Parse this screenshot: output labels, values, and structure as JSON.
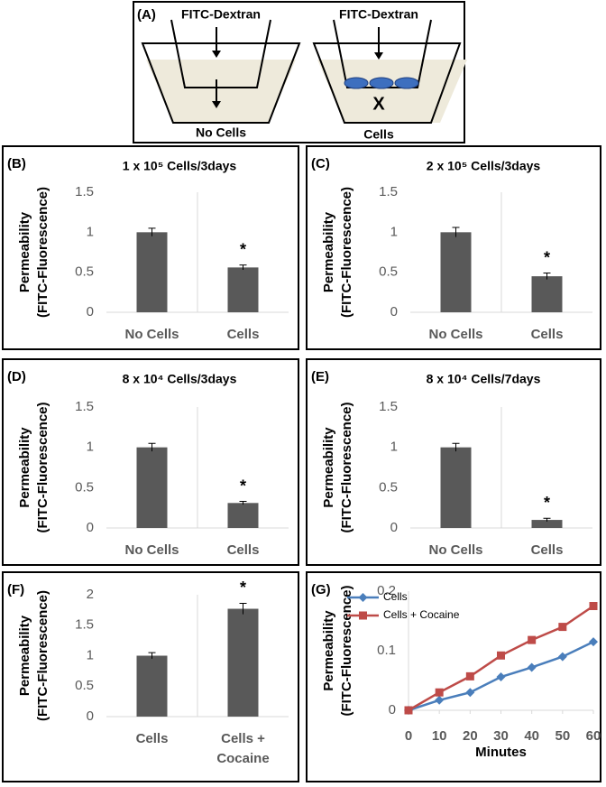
{
  "diagram": {
    "label": "(A)",
    "left_well": {
      "label": "FITC-Dextran",
      "caption": "No Cells"
    },
    "right_well": {
      "label": "FITC-Dextran",
      "caption": "Cells",
      "marker": "X"
    }
  },
  "chart_data": [
    {
      "type": "bar",
      "panel": "(B)",
      "title": "1 x 10⁵ Cells/3days",
      "ylabel": [
        "Permeability",
        "(FITC-Fluorescence)"
      ],
      "categories": [
        "No Cells",
        "Cells"
      ],
      "values": [
        1,
        0.56
      ],
      "errors": [
        0.05,
        0.03
      ],
      "significance": [
        null,
        "*"
      ],
      "color": "#595959",
      "ylim": [
        0,
        1.5
      ],
      "yticks": [
        0,
        0.5,
        1,
        1.5
      ]
    },
    {
      "type": "bar",
      "panel": "(C)",
      "title": "2 x 10⁵ Cells/3days",
      "ylabel": [
        "Permeability",
        "(FITC-Fluorescence)"
      ],
      "categories": [
        "No Cells",
        "Cells"
      ],
      "values": [
        1,
        0.45
      ],
      "errors": [
        0.06,
        0.04
      ],
      "significance": [
        null,
        "*"
      ],
      "color": "#595959",
      "ylim": [
        0,
        1.5
      ],
      "yticks": [
        0,
        0.5,
        1,
        1.5
      ]
    },
    {
      "type": "bar",
      "panel": "(D)",
      "title": "8 x 10⁴ Cells/3days",
      "ylabel": [
        "Permeability",
        "(FITC-Fluorescence)"
      ],
      "categories": [
        "No Cells",
        "Cells"
      ],
      "values": [
        1,
        0.31
      ],
      "errors": [
        0.05,
        0.02
      ],
      "significance": [
        null,
        "*"
      ],
      "color": "#595959",
      "ylim": [
        0,
        1.5
      ],
      "yticks": [
        0,
        0.5,
        1,
        1.5
      ]
    },
    {
      "type": "bar",
      "panel": "(E)",
      "title": "8 x 10⁴ Cells/7days",
      "ylabel": [
        "Permeability",
        "(FITC-Fluorescence)"
      ],
      "categories": [
        "No Cells",
        "Cells"
      ],
      "values": [
        1,
        0.1
      ],
      "errors": [
        0.05,
        0.02
      ],
      "significance": [
        null,
        "*"
      ],
      "color": "#595959",
      "ylim": [
        0,
        1.5
      ],
      "yticks": [
        0,
        0.5,
        1,
        1.5
      ]
    },
    {
      "type": "bar",
      "panel": "(F)",
      "ylabel": [
        "Permeability",
        "(FITC-Fluorescence)"
      ],
      "categories": [
        "Cells",
        "Cells + Cocaine"
      ],
      "values": [
        1,
        1.77
      ],
      "errors": [
        0.05,
        0.09
      ],
      "significance": [
        null,
        "*"
      ],
      "color": "#595959",
      "ylim": [
        0,
        2
      ],
      "yticks": [
        0,
        0.5,
        1,
        1.5,
        2
      ]
    },
    {
      "type": "line",
      "panel": "(G)",
      "ylabel": [
        "Permeability",
        "(FITC-Fluorescence)"
      ],
      "xlabel": "Minutes",
      "x": [
        0,
        10,
        20,
        30,
        40,
        50,
        60
      ],
      "xlim": [
        0,
        60
      ],
      "xticks": [
        0,
        10,
        20,
        30,
        40,
        50,
        60
      ],
      "ylim": [
        0,
        0.2
      ],
      "yticks": [
        0,
        0.1,
        0.2
      ],
      "legend": "upper left",
      "series": [
        {
          "name": "Cells",
          "color": "#4a7ebb",
          "marker": "diamond",
          "values": [
            0,
            0.017,
            0.03,
            0.056,
            0.072,
            0.09,
            0.115
          ]
        },
        {
          "name": "Cells + Cocaine",
          "color": "#be4b48",
          "marker": "square",
          "values": [
            0,
            0.03,
            0.057,
            0.092,
            0.118,
            0.14,
            0.175
          ]
        }
      ]
    }
  ]
}
